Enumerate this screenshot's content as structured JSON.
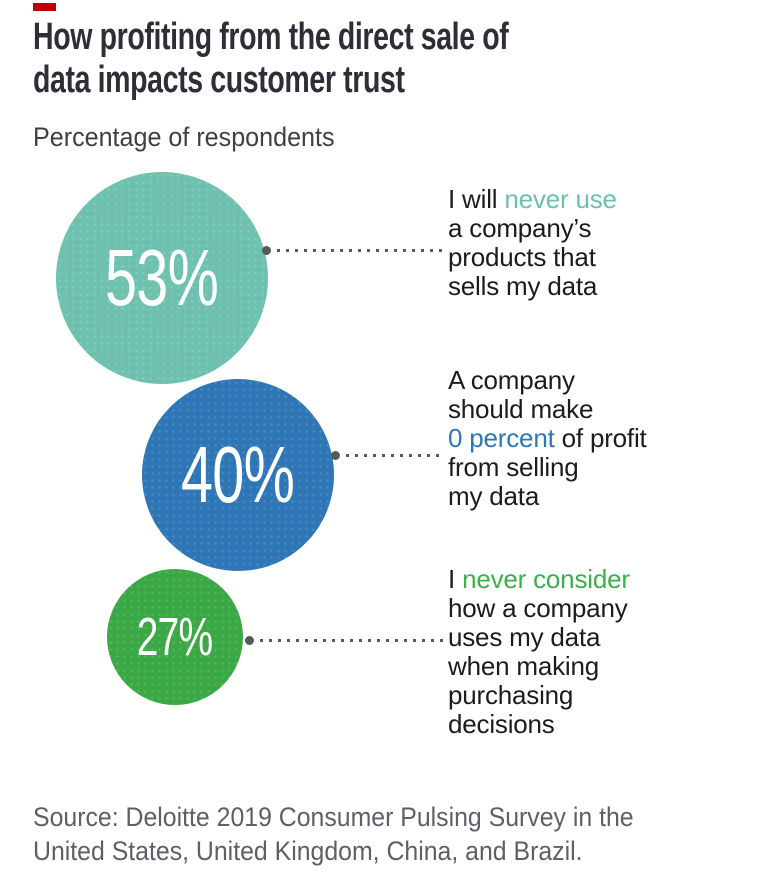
{
  "page": {
    "accent_dash_color": "#c00000",
    "title": "How profiting from the direct sale of\ndata impacts customer trust",
    "subtitle": "Percentage of respondents",
    "source_line1": "Source: Deloitte 2019 Consumer Pulsing Survey in the",
    "source_line2": "United States, United Kingdom, China, and Brazil."
  },
  "chart_data": {
    "type": "bubble",
    "title": "How profiting from the direct sale of data impacts customer trust",
    "subtitle": "Percentage of respondents",
    "value_unit": "percent of respondents",
    "connector_color": "#595959",
    "points": [
      {
        "value": 53,
        "display": "53%",
        "color": "#6fc1af",
        "highlight_color": "#6cc0ae",
        "label_pre": "I will ",
        "label_highlight": "never use",
        "label_post": "\na company’s\nproducts that\nsells my data",
        "full_label": "I will never use a company’s products that sells my data"
      },
      {
        "value": 40,
        "display": "40%",
        "color": "#2e76b6",
        "highlight_color": "#2e76b6",
        "label_pre": "A company\nshould make\n",
        "label_highlight": "0 percent",
        "label_post": " of profit\nfrom selling\nmy data",
        "full_label": "A company should make 0 percent of profit from selling my data"
      },
      {
        "value": 27,
        "display": "27%",
        "color": "#3aa845",
        "highlight_color": "#3db04b",
        "label_pre": "I ",
        "label_highlight": "never consider",
        "label_post": "\nhow a company\nuses my data\nwhen making\npurchasing\ndecisions",
        "full_label": "I never consider how a company uses my data when making purchasing decisions"
      }
    ],
    "source": "Source: Deloitte 2019 Consumer Pulsing Survey in the United States, United Kingdom, China, and Brazil."
  }
}
